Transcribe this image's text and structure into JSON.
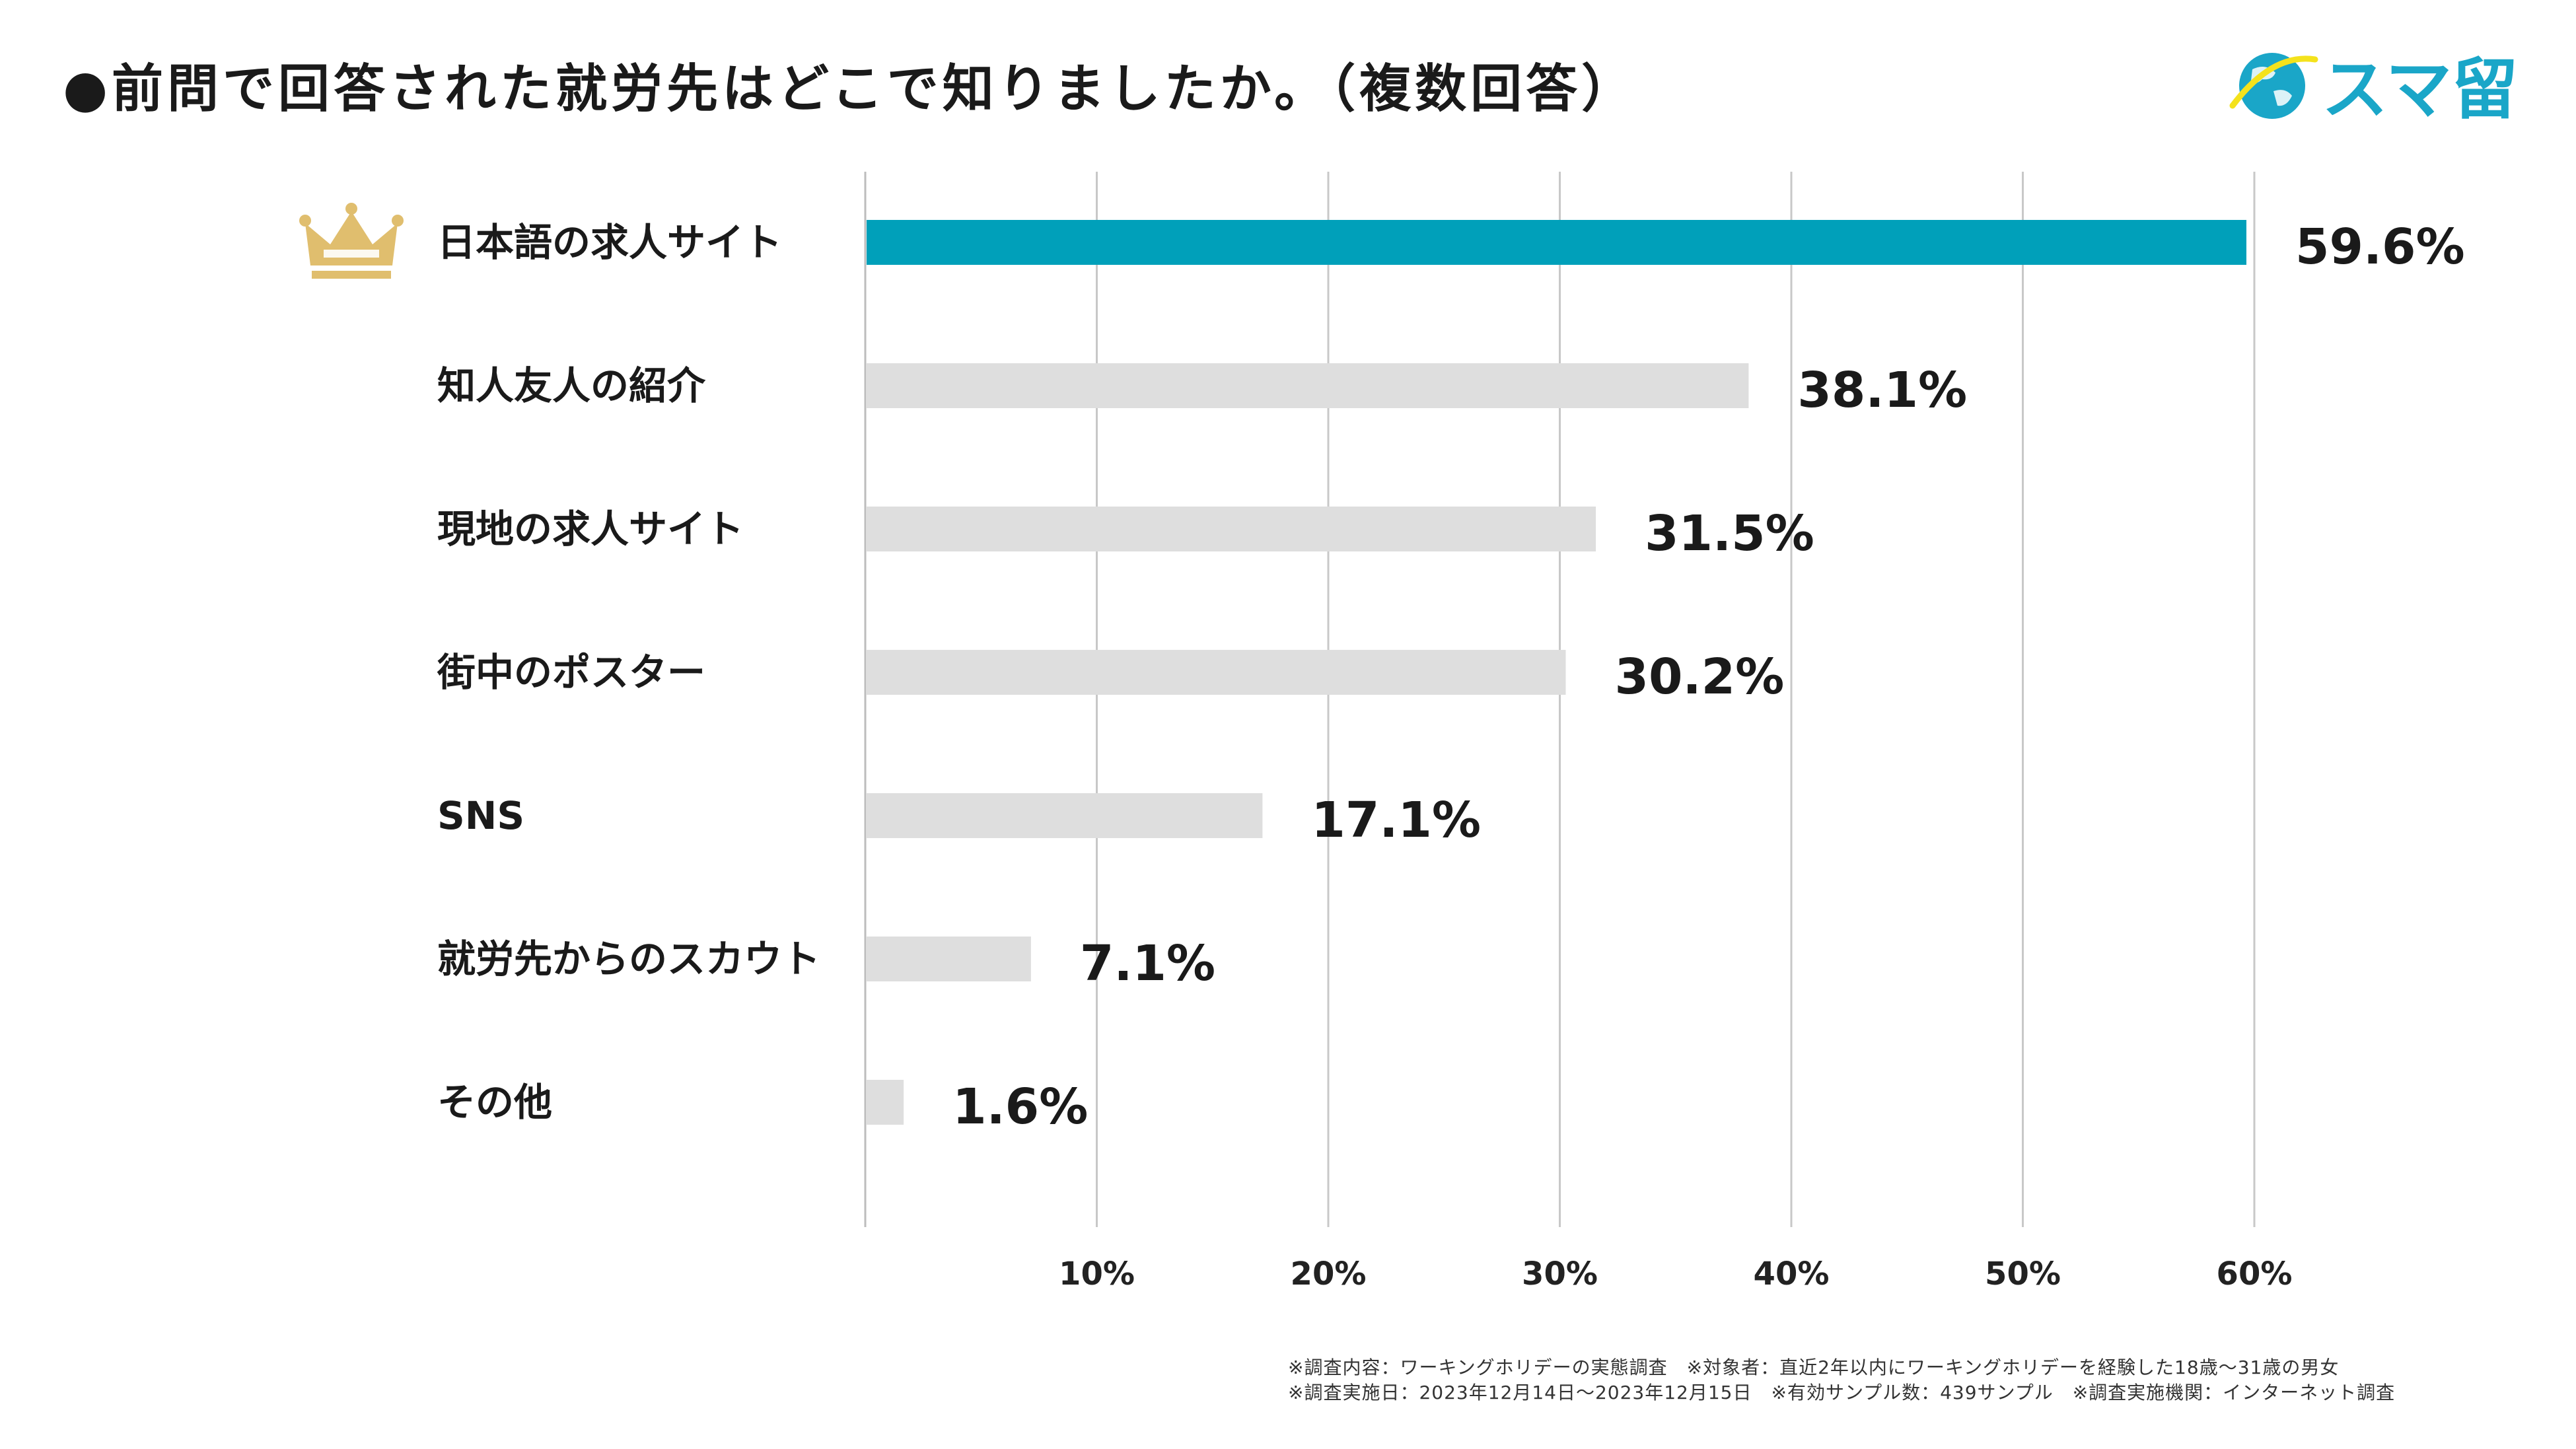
{
  "title": "●前問で回答された就労先はどこで知りましたか。（複数回答）",
  "logo": {
    "text": "スマ留",
    "icon": "globe-icon"
  },
  "colors": {
    "highlight": "#00A0BA",
    "bar": "#DEDEDE",
    "grid": "#C8C8C8",
    "crown": "#E0BE6E",
    "logo": "#1AA6C8",
    "logo_accent": "#F4E21C"
  },
  "crown_icon": "crown-icon",
  "chart_data": {
    "type": "bar",
    "orientation": "horizontal",
    "categories": [
      "日本語の求人サイト",
      "知人友人の紹介",
      "現地の求人サイト",
      "街中のポスター",
      "SNS",
      "就労先からのスカウト",
      "その他"
    ],
    "values": [
      59.6,
      38.1,
      31.5,
      30.2,
      17.1,
      7.1,
      1.6
    ],
    "value_labels": [
      "59.6%",
      "38.1%",
      "31.5%",
      "30.2%",
      "17.1%",
      "7.1%",
      "1.6%"
    ],
    "highlight_index": 0,
    "xlim": [
      0,
      60
    ],
    "ticks": [
      10,
      20,
      30,
      40,
      50,
      60
    ],
    "tick_labels": [
      "10%",
      "20%",
      "30%",
      "40%",
      "50%",
      "60%"
    ],
    "grid": true,
    "title": "●前問で回答された就労先はどこで知りましたか。（複数回答）"
  },
  "footnotes": [
    "※調査内容：ワーキングホリデーの実態調査　※対象者：直近2年以内にワーキングホリデーを経験した18歳〜31歳の男女",
    "※調査実施日：2023年12月14日〜2023年12月15日　※有効サンプル数：439サンプル　※調査実施機関：インターネット調査"
  ]
}
